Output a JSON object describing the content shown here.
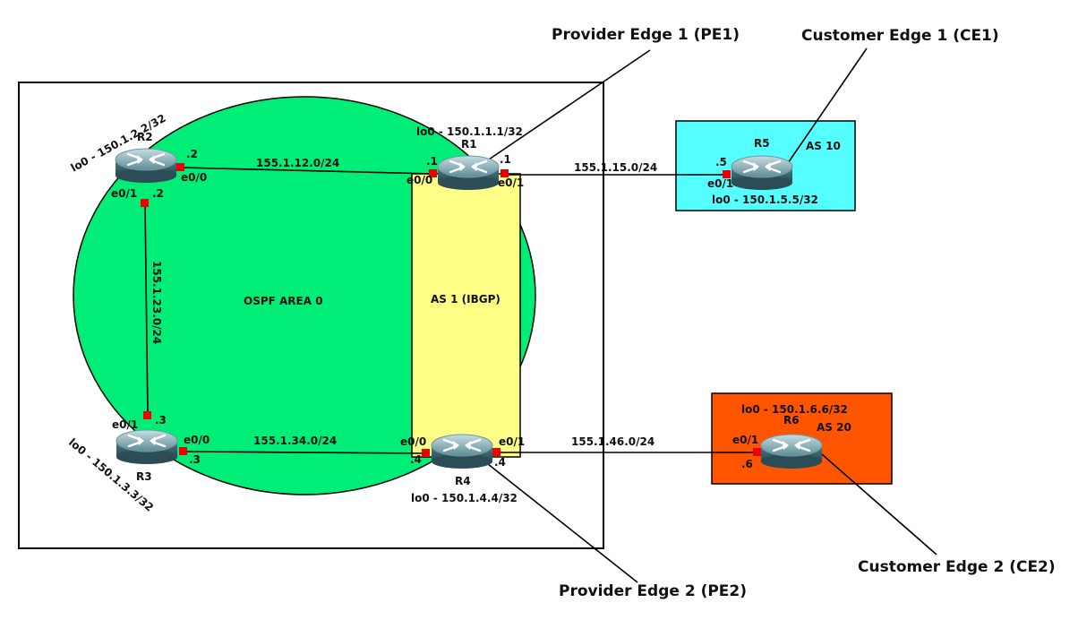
{
  "areas": {
    "ospf": "OSPF AREA 0",
    "ibgp": "AS 1 (IBGP)",
    "as10": "AS 10",
    "as20": "AS 20"
  },
  "routers": {
    "r1": {
      "name": "R1",
      "loopback": "lo0 - 150.1.1.1/32"
    },
    "r2": {
      "name": "R2",
      "loopback": "lo0 - 150.1.2.2/32"
    },
    "r3": {
      "name": "R3",
      "loopback": "lo0 - 150.1.3.3/32"
    },
    "r4": {
      "name": "R4",
      "loopback": "lo0 - 150.1.4.4/32"
    },
    "r5": {
      "name": "R5",
      "loopback": "lo0 - 150.1.5.5/32"
    },
    "r6": {
      "name": "R6",
      "loopback": "lo0 - 150.1.6.6/32"
    }
  },
  "links": {
    "r1r2": "155.1.12.0/24",
    "r2r3": "155.1.23.0/24",
    "r3r4": "155.1.34.0/24",
    "r1r5": "155.1.15.0/24",
    "r4r6": "155.1.46.0/24"
  },
  "interfaces": {
    "r2_e00": "e0/0",
    "r2_e00_ip": ".2",
    "r2_e01": "e0/1",
    "r2_e01_ip": ".2",
    "r1_e00": "e0/0",
    "r1_e00_ip": ".1",
    "r1_e01": "e0/1",
    "r1_e01_ip": ".1",
    "r5_e01": "e0/1",
    "r5_e01_ip": ".5",
    "r3_e01": "e0/1",
    "r3_e01_ip": ".3",
    "r3_e00": "e0/0",
    "r3_e00_ip": ".3",
    "r4_e00": "e0/0",
    "r4_e00_ip": ".4",
    "r4_e01": "e0/1",
    "r4_e01_ip": ".4",
    "r6_e01": "e0/1",
    "r6_e01_ip": ".6"
  },
  "callouts": {
    "pe1": "Provider Edge 1 (PE1)",
    "ce1": "Customer Edge 1 (CE1)",
    "pe2": "Provider Edge 2 (PE2)",
    "ce2": "Customer Edge 2 (CE2)"
  },
  "colors": {
    "ospf_fill": "#00ee77",
    "ibgp_fill": "#ffff88",
    "as10_fill": "#55ffff",
    "as20_fill": "#ff5500",
    "port": "#ee0000"
  }
}
